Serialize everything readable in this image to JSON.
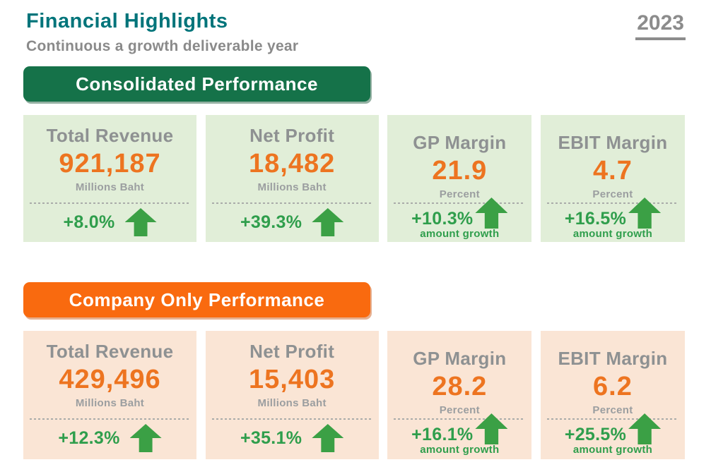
{
  "page": {
    "title": "Financial Highlights",
    "subtitle": "Continuous a growth deliverable year",
    "year": "2023"
  },
  "colors": {
    "title_teal": "#00747A",
    "banner_green": "#157249",
    "banner_orange": "#F96A0F",
    "card_green_bg": "#E1EED8",
    "card_peach_bg": "#FAE5D5",
    "value_orange": "#ED7420",
    "growth_green": "#2F9E4C",
    "label_gray": "#8E9192"
  },
  "sections": [
    {
      "banner_label": "Consolidated Performance",
      "cards": [
        {
          "label": "Total Revenue",
          "value": "921,187",
          "unit": "Millions Baht",
          "growth": "+8.0%",
          "growth_note": ""
        },
        {
          "label": "Net Profit",
          "value": "18,482",
          "unit": "Millions Baht",
          "growth": "+39.3%",
          "growth_note": ""
        },
        {
          "label": "GP Margin",
          "value": "21.9",
          "unit": "Percent",
          "growth": "+10.3%",
          "growth_note": "amount growth"
        },
        {
          "label": "EBIT Margin",
          "value": "4.7",
          "unit": "Percent",
          "growth": "+16.5%",
          "growth_note": "amount growth"
        }
      ]
    },
    {
      "banner_label": "Company Only Performance",
      "cards": [
        {
          "label": "Total Revenue",
          "value": "429,496",
          "unit": "Millions Baht",
          "growth": "+12.3%",
          "growth_note": ""
        },
        {
          "label": "Net Profit",
          "value": "15,403",
          "unit": "Millions Baht",
          "growth": "+35.1%",
          "growth_note": ""
        },
        {
          "label": "GP Margin",
          "value": "28.2",
          "unit": "Percent",
          "growth": "+16.1%",
          "growth_note": "amount growth"
        },
        {
          "label": "EBIT Margin",
          "value": "6.2",
          "unit": "Percent",
          "growth": "+25.5%",
          "growth_note": "amount growth"
        }
      ]
    }
  ]
}
